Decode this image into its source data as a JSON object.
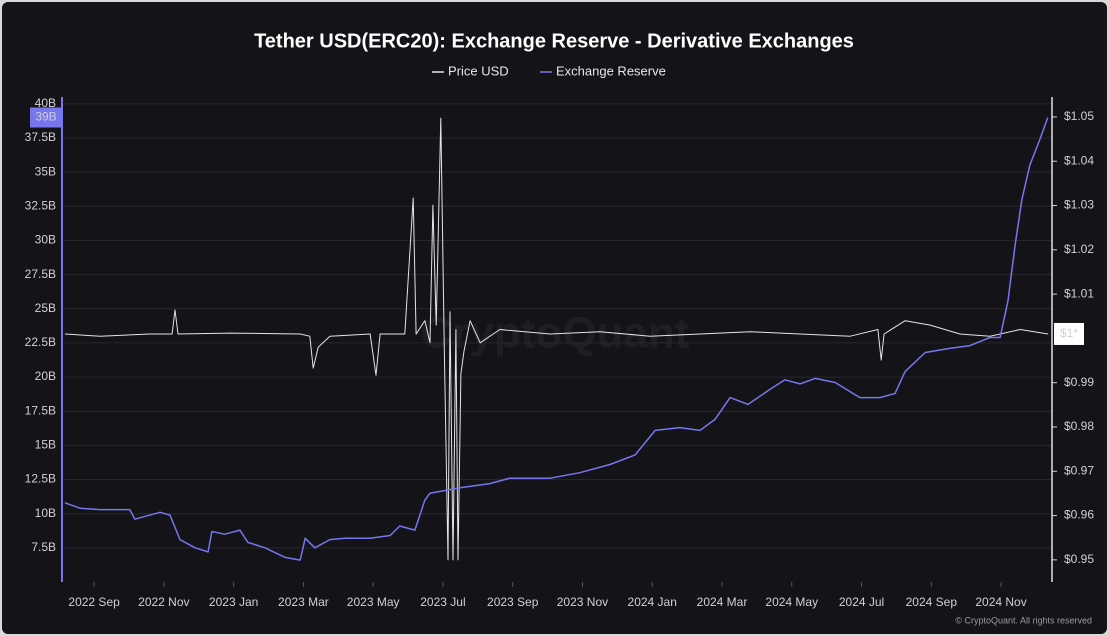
{
  "chart_data": {
    "type": "line",
    "title": "Tether USD(ERC20): Exchange Reserve - Derivative Exchanges",
    "watermark": "CryptoQuant",
    "footer": "© CryptoQuant. All rights reserved",
    "xlim": [
      2022.59,
      2024.955
    ],
    "xticks": [
      {
        "value": 2022.6667,
        "label": "2022 Sep"
      },
      {
        "value": 2022.8333,
        "label": "2022 Nov"
      },
      {
        "value": 2023.0,
        "label": "2023 Jan"
      },
      {
        "value": 2023.1667,
        "label": "2023 Mar"
      },
      {
        "value": 2023.3333,
        "label": "2023 May"
      },
      {
        "value": 2023.5,
        "label": "2023 Jul"
      },
      {
        "value": 2023.6667,
        "label": "2023 Sep"
      },
      {
        "value": 2023.8333,
        "label": "2023 Nov"
      },
      {
        "value": 2024.0,
        "label": "2024 Jan"
      },
      {
        "value": 2024.1667,
        "label": "2024 Mar"
      },
      {
        "value": 2024.3333,
        "label": "2024 May"
      },
      {
        "value": 2024.5,
        "label": "2024 Jul"
      },
      {
        "value": 2024.6667,
        "label": "2024 Sep"
      },
      {
        "value": 2024.8333,
        "label": "2024 Nov"
      }
    ],
    "ylim": [
      5,
      40.5
    ],
    "yticks": [
      {
        "value": 7.5,
        "label": "7.5B"
      },
      {
        "value": 10,
        "label": "10B"
      },
      {
        "value": 12.5,
        "label": "12.5B"
      },
      {
        "value": 15,
        "label": "15B"
      },
      {
        "value": 17.5,
        "label": "17.5B"
      },
      {
        "value": 20,
        "label": "20B"
      },
      {
        "value": 22.5,
        "label": "22.5B"
      },
      {
        "value": 25,
        "label": "25B"
      },
      {
        "value": 27.5,
        "label": "27.5B"
      },
      {
        "value": 30,
        "label": "30B"
      },
      {
        "value": 32.5,
        "label": "32.5B"
      },
      {
        "value": 35,
        "label": "35B"
      },
      {
        "value": 37.5,
        "label": "37.5B"
      },
      {
        "value": 40,
        "label": "40B"
      }
    ],
    "y2lim": [
      0.945,
      1.0545
    ],
    "y2ticks": [
      {
        "value": 0.95,
        "label": "$0.95"
      },
      {
        "value": 0.96,
        "label": "$0.96"
      },
      {
        "value": 0.97,
        "label": "$0.97"
      },
      {
        "value": 0.98,
        "label": "$0.98"
      },
      {
        "value": 0.99,
        "label": "$0.99"
      },
      {
        "value": 1.01,
        "label": "$1.01"
      },
      {
        "value": 1.02,
        "label": "$1.02"
      },
      {
        "value": 1.03,
        "label": "$1.03"
      },
      {
        "value": 1.04,
        "label": "$1.04"
      },
      {
        "value": 1.05,
        "label": "$1.05"
      }
    ],
    "grid": true,
    "series": [
      {
        "name": "Price USD",
        "color": "#e4e4e4",
        "axis": "y2",
        "end_label": "$1*",
        "x": [
          2022.597,
          2022.681,
          2022.8,
          2022.853,
          2022.86,
          2022.867,
          2022.991,
          2023.159,
          2023.182,
          2023.19,
          2023.202,
          2023.23,
          2023.326,
          2023.34,
          2023.35,
          2023.409,
          2023.429,
          2023.436,
          2023.457,
          2023.469,
          2023.476,
          2023.484,
          2023.488,
          2023.495,
          2023.503,
          2023.512,
          2023.517,
          2023.524,
          2023.531,
          2023.536,
          2023.543,
          2023.55,
          2023.565,
          2023.589,
          2023.636,
          2023.756,
          2023.875,
          2023.995,
          2024.114,
          2024.234,
          2024.353,
          2024.473,
          2024.539,
          2024.547,
          2024.554,
          2024.604,
          2024.664,
          2024.735,
          2024.807,
          2024.879,
          2024.946
        ],
        "values": [
          1.001,
          1.0005,
          1.001,
          1.001,
          1.0064,
          1.001,
          1.0012,
          1.001,
          1.0005,
          0.9933,
          0.998,
          1.0005,
          1.001,
          0.9917,
          1.001,
          1.001,
          1.0317,
          1.001,
          1.004,
          0.999,
          1.0301,
          1.003,
          1.02,
          1.0497,
          0.999,
          0.95,
          1.006,
          0.95,
          1.002,
          0.95,
          0.992,
          0.997,
          1.004,
          0.999,
          1.002,
          1.001,
          1.0015,
          1.0005,
          1.001,
          1.0015,
          1.001,
          1.0005,
          1.002,
          0.9951,
          1.001,
          1.004,
          1.003,
          1.001,
          1.0005,
          1.002,
          1.001
        ]
      },
      {
        "name": "Exchange Reserve",
        "color": "#7676ee",
        "axis": "y",
        "end_label": "39B",
        "x": [
          2022.597,
          2022.633,
          2022.681,
          2022.752,
          2022.764,
          2022.824,
          2022.848,
          2022.872,
          2022.908,
          2022.939,
          2022.948,
          2022.979,
          2023.015,
          2023.034,
          2023.075,
          2023.123,
          2023.159,
          2023.171,
          2023.194,
          2023.23,
          2023.266,
          2023.326,
          2023.374,
          2023.397,
          2023.433,
          2023.457,
          2023.469,
          2023.541,
          2023.612,
          2023.66,
          2023.756,
          2023.827,
          2023.899,
          2023.959,
          2024.007,
          2024.066,
          2024.114,
          2024.15,
          2024.186,
          2024.229,
          2024.281,
          2024.317,
          2024.353,
          2024.389,
          2024.437,
          2024.496,
          2024.544,
          2024.58,
          2024.604,
          2024.652,
          2024.711,
          2024.759,
          2024.807,
          2024.831,
          2024.85,
          2024.867,
          2024.883,
          2024.902,
          2024.926,
          2024.945
        ],
        "values": [
          10.8,
          10.4,
          10.3,
          10.3,
          9.6,
          10.1,
          9.9,
          8.1,
          7.5,
          7.2,
          8.7,
          8.5,
          8.8,
          7.9,
          7.5,
          6.8,
          6.6,
          8.2,
          7.5,
          8.1,
          8.2,
          8.2,
          8.4,
          9.1,
          8.8,
          11.0,
          11.5,
          11.9,
          12.2,
          12.6,
          12.6,
          13.0,
          13.6,
          14.3,
          16.1,
          16.3,
          16.1,
          16.9,
          18.5,
          18.0,
          19.1,
          19.8,
          19.5,
          19.9,
          19.6,
          18.5,
          18.5,
          18.8,
          20.4,
          21.8,
          22.1,
          22.3,
          22.9,
          22.9,
          25.6,
          29.7,
          33.0,
          35.5,
          37.4,
          39.0
        ]
      }
    ]
  }
}
